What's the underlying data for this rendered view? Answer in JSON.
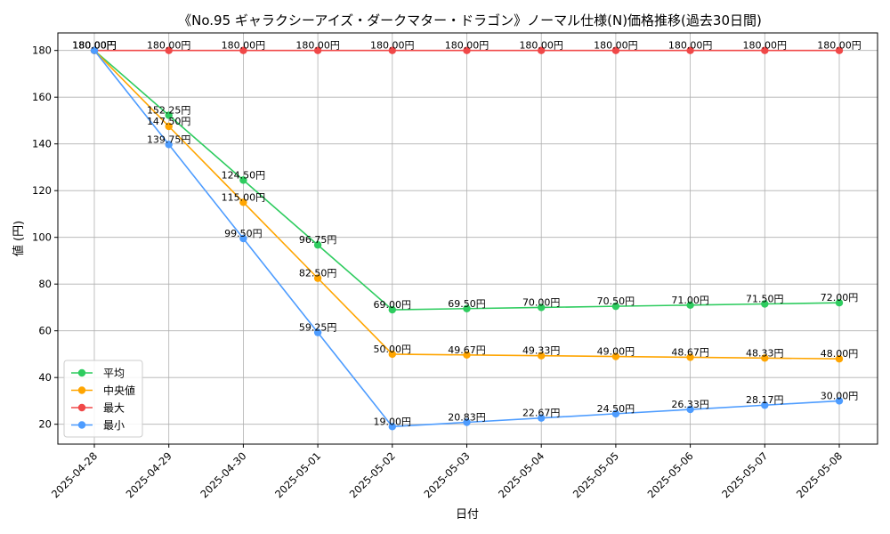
{
  "chart_data": {
    "type": "line",
    "title": "《No.95 ギャラクシーアイズ・ダークマター・ドラゴン》ノーマル仕様(N)価格推移(過去30日間)",
    "xlabel": "日付",
    "ylabel": "値 (円)",
    "categories": [
      "2025-04-28",
      "2025-04-29",
      "2025-04-30",
      "2025-05-01",
      "2025-05-02",
      "2025-05-03",
      "2025-05-04",
      "2025-05-05",
      "2025-05-06",
      "2025-05-07",
      "2025-05-08"
    ],
    "ylim": [
      11.5,
      187.5
    ],
    "yticks": [
      20,
      40,
      60,
      80,
      100,
      120,
      140,
      160,
      180
    ],
    "grid": true,
    "legend_position": "lower-left",
    "value_suffix": "円",
    "series": [
      {
        "name": "平均",
        "color": "#2ecc5f",
        "values": [
          180,
          152.25,
          124.5,
          96.75,
          69,
          69.5,
          70,
          70.5,
          71,
          71.5,
          72
        ],
        "labels": [
          "180.00円",
          "152.25円",
          "124.50円",
          "96.75円",
          "69.00円",
          "69.50円",
          "70.00円",
          "70.50円",
          "71.00円",
          "71.50円",
          "72.00円"
        ]
      },
      {
        "name": "中央値",
        "color": "#ffa500",
        "values": [
          180,
          147.5,
          115,
          82.5,
          50,
          49.67,
          49.33,
          49,
          48.67,
          48.33,
          48
        ],
        "labels": [
          "180.00円",
          "147.50円",
          "115.00円",
          "82.50円",
          "50.00円",
          "49.67円",
          "49.33円",
          "49.00円",
          "48.67円",
          "48.33円",
          "48.00円"
        ]
      },
      {
        "name": "最大",
        "color": "#f04848",
        "values": [
          180,
          180,
          180,
          180,
          180,
          180,
          180,
          180,
          180,
          180,
          180
        ],
        "labels": [
          "180.00円",
          "180.00円",
          "180.00円",
          "180.00円",
          "180.00円",
          "180.00円",
          "180.00円",
          "180.00円",
          "180.00円",
          "180.00円",
          "180.00円"
        ]
      },
      {
        "name": "最小",
        "color": "#4d9cff",
        "values": [
          180,
          139.75,
          99.5,
          59.25,
          19,
          20.83,
          22.67,
          24.5,
          26.33,
          28.17,
          30
        ],
        "labels": [
          "180.00円",
          "139.75円",
          "99.50円",
          "59.25円",
          "19.00円",
          "20.83円",
          "22.67円",
          "24.50円",
          "26.33円",
          "28.17円",
          "30.00円"
        ]
      }
    ]
  }
}
